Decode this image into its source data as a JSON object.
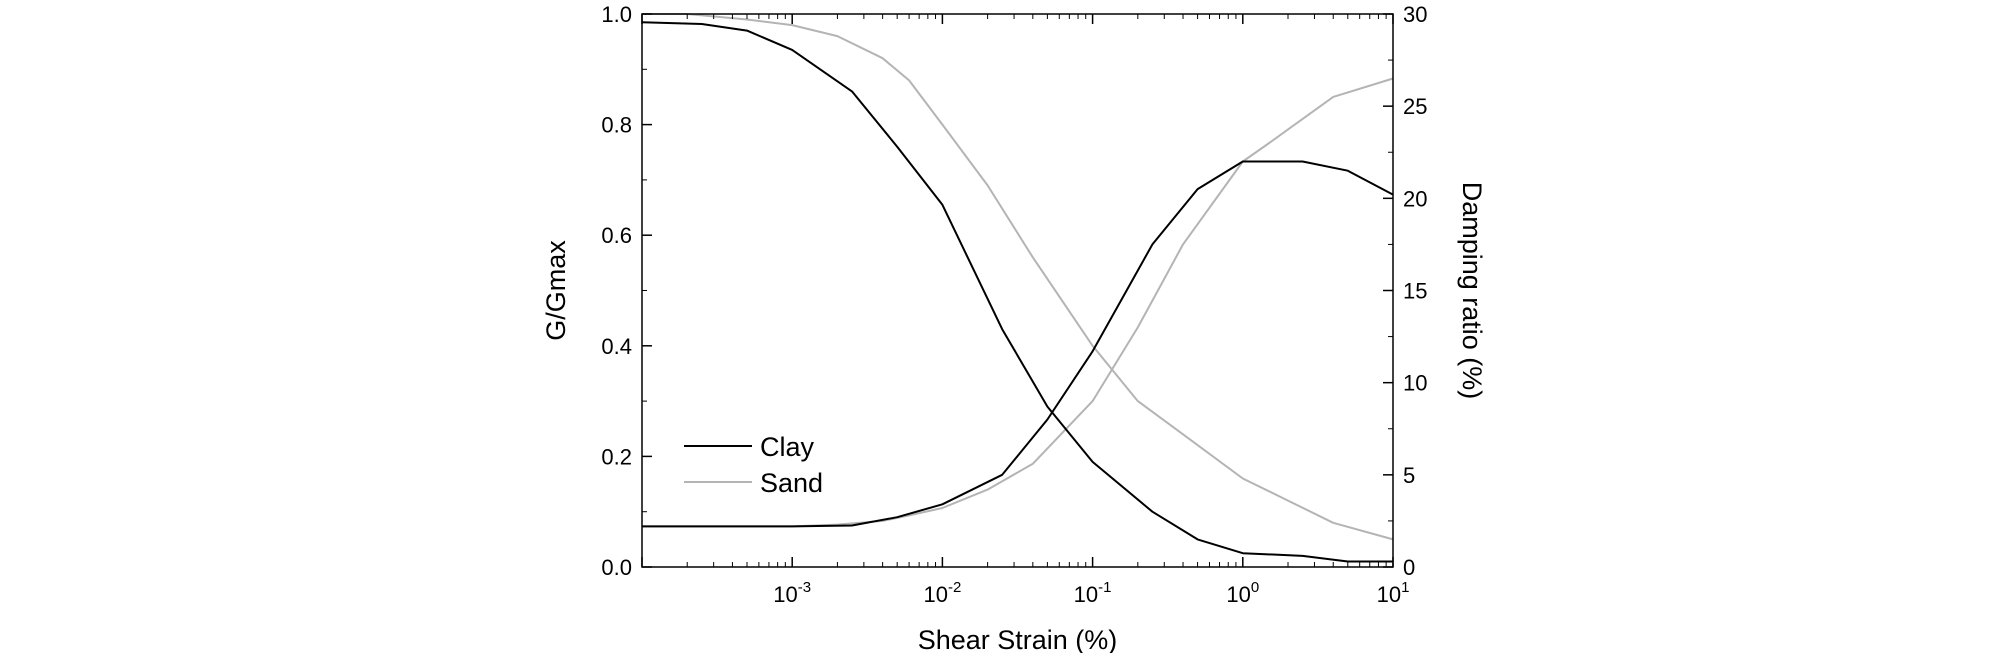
{
  "chart_data": {
    "type": "line",
    "xlabel": "Shear Strain (%)",
    "ylabel_left": "G/Gmax",
    "ylabel_right": "Damping ratio (%)",
    "xscale": "log",
    "xlim": [
      0.0001,
      10
    ],
    "ylim_left": [
      0,
      1.0
    ],
    "ylim_right": [
      0,
      30
    ],
    "x_ticks": [
      {
        "base": "10",
        "exp": "-3",
        "value": 0.001
      },
      {
        "base": "10",
        "exp": "-2",
        "value": 0.01
      },
      {
        "base": "10",
        "exp": "-1",
        "value": 0.1
      },
      {
        "base": "10",
        "exp": "0",
        "value": 1
      },
      {
        "base": "10",
        "exp": "1",
        "value": 10
      }
    ],
    "y_ticks_left": [
      "0.0",
      "0.2",
      "0.4",
      "0.6",
      "0.8",
      "1.0"
    ],
    "y_ticks_right": [
      "0",
      "5",
      "10",
      "15",
      "20",
      "25",
      "30"
    ],
    "legend": {
      "position": "bottom-left",
      "entries": [
        {
          "name": "Clay",
          "color": "#000000"
        },
        {
          "name": "Sand",
          "color": "#b4b4b4"
        }
      ]
    },
    "series": [
      {
        "name": "Clay",
        "quantity": "G/Gmax",
        "axis": "left",
        "color": "#000000",
        "x": [
          0.0001,
          0.00025,
          0.0005,
          0.001,
          0.0025,
          0.005,
          0.01,
          0.025,
          0.05,
          0.1,
          0.25,
          0.5,
          1,
          2.5,
          5,
          10
        ],
        "y": [
          0.985,
          0.982,
          0.97,
          0.935,
          0.86,
          0.76,
          0.655,
          0.43,
          0.29,
          0.19,
          0.1,
          0.05,
          0.025,
          0.02,
          0.01,
          0.01
        ]
      },
      {
        "name": "Sand",
        "quantity": "G/Gmax",
        "axis": "left",
        "color": "#b4b4b4",
        "x": [
          0.0001,
          0.0002,
          0.0005,
          0.001,
          0.002,
          0.004,
          0.006,
          0.01,
          0.02,
          0.04,
          0.1,
          0.2,
          0.4,
          1,
          2,
          4,
          10
        ],
        "y": [
          1.0,
          1.0,
          0.99,
          0.98,
          0.96,
          0.92,
          0.88,
          0.8,
          0.69,
          0.56,
          0.4,
          0.3,
          0.24,
          0.16,
          0.12,
          0.08,
          0.05
        ]
      },
      {
        "name": "Clay",
        "quantity": "Damping ratio (%)",
        "axis": "right",
        "color": "#000000",
        "x": [
          0.0001,
          0.00025,
          0.0005,
          0.001,
          0.0025,
          0.005,
          0.01,
          0.025,
          0.05,
          0.1,
          0.25,
          0.5,
          1,
          2.5,
          5,
          10
        ],
        "y": [
          2.2,
          2.2,
          2.2,
          2.2,
          2.25,
          2.7,
          3.4,
          5.0,
          8.0,
          11.7,
          17.5,
          20.5,
          22.0,
          22.0,
          21.5,
          20.2
        ]
      },
      {
        "name": "Sand",
        "quantity": "Damping ratio (%)",
        "axis": "right",
        "color": "#b4b4b4",
        "x": [
          0.0001,
          0.0005,
          0.001,
          0.002,
          0.004,
          0.006,
          0.01,
          0.02,
          0.04,
          0.1,
          0.2,
          0.4,
          1,
          1.5,
          4,
          10
        ],
        "y": [
          2.2,
          2.2,
          2.2,
          2.3,
          2.5,
          2.8,
          3.2,
          4.2,
          5.6,
          9.0,
          13.0,
          17.5,
          22.0,
          23.0,
          25.5,
          26.5
        ]
      }
    ]
  }
}
